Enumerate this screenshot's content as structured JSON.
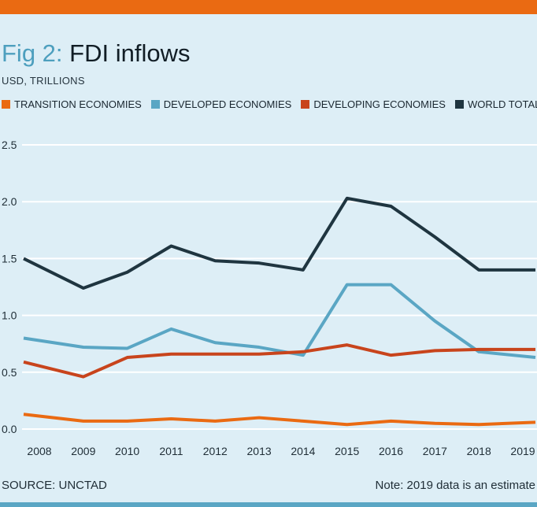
{
  "header": {
    "title_prefix": "Fig 2:",
    "title_main": "FDI inflows",
    "subtitle": "USD, TRILLIONS"
  },
  "footer": {
    "source": "SOURCE: UNCTAD",
    "note": "Note: 2019 data is an estimate"
  },
  "colors": {
    "accent_bar": "#ea6a12",
    "background": "#ddeef6",
    "bottom_bar": "#5aa6c4"
  },
  "chart_data": {
    "type": "line",
    "x": [
      "2008",
      "2009",
      "2010",
      "2011",
      "2012",
      "2013",
      "2014",
      "2015",
      "2016",
      "2017",
      "2018",
      "2019"
    ],
    "ylim": [
      0,
      2.5
    ],
    "yticks": [
      "0.0",
      "0.5",
      "1.0",
      "1.5",
      "2.0",
      "2.5"
    ],
    "ytick_values": [
      0,
      0.5,
      1.0,
      1.5,
      2.0,
      2.5
    ],
    "grid": true,
    "legend_position": "top-left",
    "series": [
      {
        "name": "TRANSITION ECONOMIES",
        "color": "#ea6a12",
        "values": [
          0.13,
          0.07,
          0.07,
          0.09,
          0.07,
          0.1,
          0.07,
          0.04,
          0.07,
          0.05,
          0.04,
          0.06
        ]
      },
      {
        "name": "DEVELOPED ECONOMIES",
        "color": "#5aa6c4",
        "values": [
          0.8,
          0.72,
          0.71,
          0.88,
          0.76,
          0.72,
          0.65,
          1.27,
          1.27,
          0.95,
          0.68,
          0.63
        ]
      },
      {
        "name": "DEVELOPING ECONOMIES",
        "color": "#c8441c",
        "values": [
          0.59,
          0.46,
          0.63,
          0.66,
          0.66,
          0.66,
          0.68,
          0.74,
          0.65,
          0.69,
          0.7,
          0.7
        ]
      },
      {
        "name": "WORLD TOTAL",
        "color": "#1f3540",
        "values": [
          1.5,
          1.24,
          1.38,
          1.61,
          1.48,
          1.46,
          1.4,
          2.03,
          1.96,
          1.69,
          1.4,
          1.4
        ]
      }
    ]
  }
}
